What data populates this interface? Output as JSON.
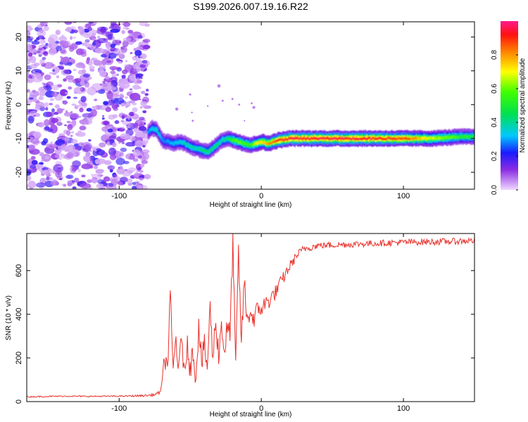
{
  "figure": {
    "title": "S199.2026.007.19.16.R22"
  },
  "chart_data": [
    {
      "type": "heatmap",
      "name": "spectrogram",
      "xlabel": "Height of straight line (km)",
      "ylabel": "Frequency (Hz)",
      "xlim": [
        -165,
        150
      ],
      "ylim": [
        -25,
        24.5
      ],
      "xticks": [
        -100,
        0,
        100
      ],
      "yticks": [
        -20,
        -10,
        0,
        10,
        20
      ],
      "noise_region_x": [
        -165,
        -80
      ],
      "noise_level": 0.18,
      "signal_track": {
        "x": [
          -80,
          -77,
          -74,
          -70,
          -66,
          -62,
          -58,
          -54,
          -50,
          -46,
          -42,
          -38,
          -35,
          -32,
          -28,
          -24,
          -20,
          -16,
          -12,
          -8,
          -4,
          0,
          4,
          8,
          12,
          20,
          40,
          60,
          80,
          100,
          120,
          140,
          150
        ],
        "frequency_hz": [
          -8,
          -7,
          -7.5,
          -10.5,
          -11,
          -11.5,
          -11,
          -11.5,
          -12.5,
          -13,
          -13.5,
          -14,
          -13,
          -12,
          -10.5,
          -10,
          -10.5,
          -11,
          -11.5,
          -12,
          -11.5,
          -11,
          -11.5,
          -11,
          -10.5,
          -10,
          -10,
          -10,
          -10,
          -10,
          -10,
          -9.5,
          -9.5
        ],
        "peak_amplitude": [
          0.3,
          0.35,
          0.4,
          0.3,
          0.3,
          0.35,
          0.35,
          0.4,
          0.4,
          0.4,
          0.45,
          0.45,
          0.45,
          0.45,
          0.4,
          0.45,
          0.6,
          0.6,
          0.6,
          0.55,
          0.7,
          0.75,
          0.8,
          0.85,
          0.95,
          0.97,
          0.97,
          0.97,
          0.96,
          0.92,
          0.7,
          0.55,
          0.5
        ]
      },
      "colorbar": {
        "label": "Normalized spectral amplitude",
        "range": [
          0,
          1
        ],
        "ticks": [
          0.0,
          0.2,
          0.4,
          0.6,
          0.8
        ]
      }
    },
    {
      "type": "line",
      "name": "snr",
      "xlabel": "Height of straight line (km)",
      "ylabel": "SNR (10 * v/v)",
      "xlim": [
        -165,
        150
      ],
      "ylim": [
        0,
        770
      ],
      "xticks": [
        -100,
        0,
        100
      ],
      "yticks": [
        0,
        200,
        400,
        600
      ],
      "color": "#e8322c",
      "series": [
        {
          "name": "SNR",
          "x": [
            -165,
            -140,
            -120,
            -100,
            -90,
            -80,
            -75,
            -72,
            -70,
            -68,
            -66,
            -64,
            -62,
            -60,
            -58,
            -56,
            -54,
            -52,
            -50,
            -48,
            -46,
            -44,
            -42,
            -40,
            -38,
            -36,
            -34,
            -32,
            -30,
            -28,
            -26,
            -24,
            -22,
            -20,
            -18,
            -16,
            -14,
            -12,
            -10,
            -8,
            -6,
            -4,
            -2,
            0,
            5,
            10,
            15,
            20,
            25,
            30,
            40,
            60,
            80,
            100,
            120,
            140,
            150
          ],
          "y": [
            22,
            25,
            24,
            25,
            26,
            28,
            32,
            40,
            70,
            200,
            160,
            470,
            140,
            300,
            120,
            320,
            100,
            290,
            140,
            240,
            110,
            350,
            180,
            250,
            160,
            420,
            200,
            380,
            210,
            360,
            230,
            340,
            300,
            740,
            150,
            680,
            260,
            560,
            360,
            420,
            380,
            400,
            420,
            430,
            460,
            500,
            560,
            620,
            670,
            700,
            715,
            720,
            725,
            730,
            732,
            735,
            738
          ],
          "jitter": [
            3,
            3,
            3,
            3,
            4,
            5,
            6,
            8,
            15,
            40,
            60,
            60,
            60,
            60,
            60,
            60,
            60,
            60,
            60,
            60,
            60,
            60,
            60,
            60,
            60,
            60,
            60,
            60,
            60,
            60,
            60,
            60,
            60,
            60,
            60,
            60,
            60,
            60,
            55,
            55,
            55,
            50,
            50,
            45,
            40,
            35,
            30,
            25,
            20,
            18,
            15,
            15,
            15,
            15,
            15,
            15,
            15
          ]
        }
      ]
    }
  ]
}
